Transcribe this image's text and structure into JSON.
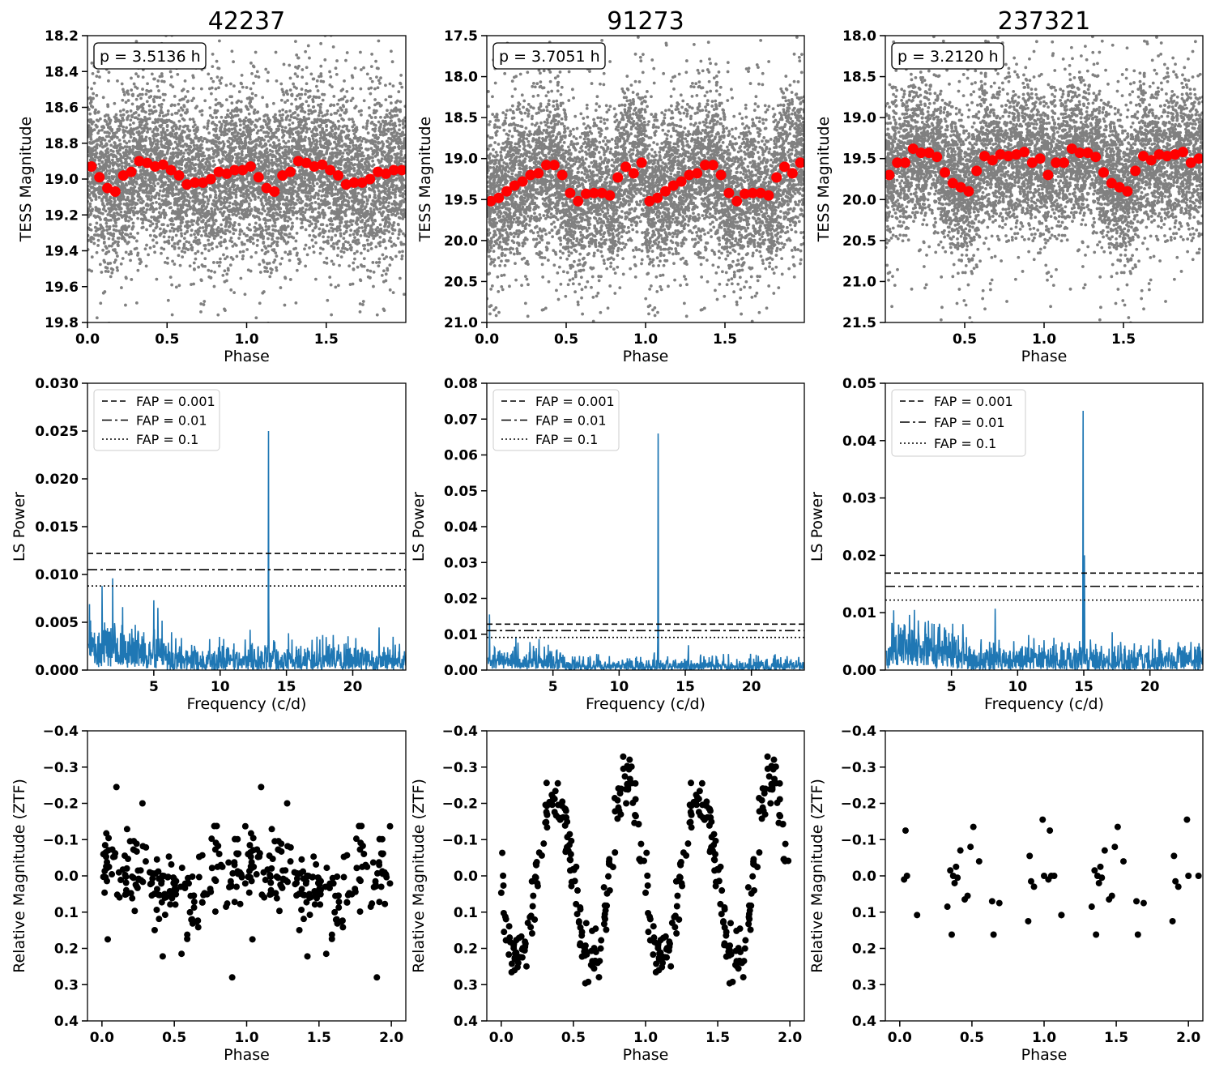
{
  "figure": {
    "columns": [
      {
        "object_id": "42237"
      },
      {
        "object_id": "91273"
      },
      {
        "object_id": "237321"
      }
    ]
  },
  "chart_data": [
    {
      "panel": "row1-col1",
      "type": "scatter",
      "title": "42237",
      "xlabel": "Phase",
      "ylabel": "TESS Magnitude",
      "xlim": [
        0.0,
        2.0
      ],
      "ylim": [
        19.8,
        18.2
      ],
      "y_inverted": true,
      "xticks": [
        "0.0",
        "0.5",
        "1.0",
        "1.5"
      ],
      "yticks": [
        "18.2",
        "18.4",
        "18.6",
        "18.8",
        "19.0",
        "19.2",
        "19.4",
        "19.6",
        "19.8"
      ],
      "annotation": "p = 3.5136 h",
      "raw_points": {
        "color": "#808080",
        "count_approx": 7000,
        "center_mag": 18.96,
        "scatter_sigma": 0.22,
        "note": "dense cloud of individual TESS measurements"
      },
      "binned_color": "#ff0000",
      "binned_x": [
        0.025,
        0.075,
        0.125,
        0.175,
        0.225,
        0.275,
        0.325,
        0.375,
        0.425,
        0.475,
        0.525,
        0.575,
        0.625,
        0.675,
        0.725,
        0.775,
        0.825,
        0.875,
        0.925,
        0.975
      ],
      "binned_y": [
        18.93,
        18.99,
        19.05,
        19.07,
        18.98,
        18.96,
        18.9,
        18.91,
        18.93,
        18.92,
        18.95,
        18.98,
        19.03,
        19.02,
        19.02,
        19.0,
        18.96,
        18.97,
        18.95,
        18.95
      ],
      "binned_repeat": "values repeat for phase 1.0-2.0"
    },
    {
      "panel": "row1-col2",
      "type": "scatter",
      "title": "91273",
      "xlabel": "Phase",
      "ylabel": "TESS Magnitude",
      "xlim": [
        0.0,
        2.0
      ],
      "ylim": [
        21.0,
        17.5
      ],
      "y_inverted": true,
      "xticks": [
        "0.0",
        "0.5",
        "1.0",
        "1.5"
      ],
      "yticks": [
        "17.5",
        "18.0",
        "18.5",
        "19.0",
        "19.5",
        "20.0",
        "20.5",
        "21.0"
      ],
      "annotation": "p = 3.7051 h",
      "raw_points": {
        "color": "#808080",
        "count_approx": 7000,
        "center_mag": 19.25,
        "scatter_sigma": 0.45,
        "note": "dense cloud of individual TESS measurements"
      },
      "binned_color": "#ff0000",
      "binned_x": [
        0.025,
        0.075,
        0.125,
        0.175,
        0.225,
        0.275,
        0.325,
        0.375,
        0.425,
        0.475,
        0.525,
        0.575,
        0.625,
        0.675,
        0.725,
        0.775,
        0.825,
        0.875,
        0.925,
        0.975
      ],
      "binned_y": [
        19.52,
        19.48,
        19.4,
        19.33,
        19.28,
        19.2,
        19.18,
        19.08,
        19.08,
        19.2,
        19.42,
        19.52,
        19.43,
        19.42,
        19.42,
        19.45,
        19.23,
        19.1,
        19.18,
        19.05
      ],
      "binned_repeat": "values repeat for phase 1.0-2.0"
    },
    {
      "panel": "row1-col3",
      "type": "scatter",
      "title": "237321",
      "xlabel": "Phase",
      "ylabel": "TESS Magnitude",
      "xlim": [
        0.0,
        2.0
      ],
      "ylim": [
        21.5,
        18.0
      ],
      "y_inverted": true,
      "xticks": [
        "0.5",
        "1.0",
        "1.5"
      ],
      "yticks": [
        "18.0",
        "18.5",
        "19.0",
        "19.5",
        "20.0",
        "20.5",
        "21.0",
        "21.5"
      ],
      "annotation": "p = 3.2120 h",
      "raw_points": {
        "color": "#808080",
        "count_approx": 7000,
        "center_mag": 19.6,
        "scatter_sigma": 0.42,
        "note": "dense cloud of individual TESS measurements"
      },
      "binned_color": "#ff0000",
      "binned_x": [
        0.025,
        0.075,
        0.125,
        0.175,
        0.225,
        0.275,
        0.325,
        0.375,
        0.425,
        0.475,
        0.525,
        0.575,
        0.625,
        0.675,
        0.725,
        0.775,
        0.825,
        0.875,
        0.925,
        0.975
      ],
      "binned_y": [
        19.7,
        19.55,
        19.55,
        19.38,
        19.43,
        19.43,
        19.48,
        19.67,
        19.8,
        19.85,
        19.9,
        19.65,
        19.47,
        19.52,
        19.45,
        19.47,
        19.45,
        19.42,
        19.55,
        19.5
      ],
      "binned_repeat": "values repeat for phase 1.0-2.0"
    },
    {
      "panel": "row2-col1",
      "type": "line",
      "xlabel": "Frequency (c/d)",
      "ylabel": "LS Power",
      "xlim": [
        0.0,
        24.0
      ],
      "ylim": [
        0.0,
        0.03
      ],
      "xticks": [
        "5",
        "10",
        "15",
        "20"
      ],
      "yticks": [
        "0.000",
        "0.005",
        "0.010",
        "0.015",
        "0.020",
        "0.025",
        "0.030"
      ],
      "line_color": "#1f77b4",
      "peaks": [
        {
          "x": 0.15,
          "y": 0.0069
        },
        {
          "x": 1.1,
          "y": 0.0088
        },
        {
          "x": 1.9,
          "y": 0.0096
        },
        {
          "x": 5.0,
          "y": 0.0073
        },
        {
          "x": 13.65,
          "y": 0.025
        },
        {
          "x": 17.3,
          "y": 0.0035
        }
      ],
      "noise_level": 0.0015,
      "fap_lines": [
        {
          "label": "FAP = 0.001",
          "y": 0.0122,
          "style": "dashed"
        },
        {
          "label": "FAP = 0.01",
          "y": 0.0105,
          "style": "dashdot"
        },
        {
          "label": "FAP = 0.1",
          "y": 0.0088,
          "style": "dotted"
        }
      ],
      "legend_position": "upper-left"
    },
    {
      "panel": "row2-col2",
      "type": "line",
      "xlabel": "Frequency (c/d)",
      "ylabel": "LS Power",
      "xlim": [
        0.0,
        24.0
      ],
      "ylim": [
        0.0,
        0.08
      ],
      "xticks": [
        "5",
        "10",
        "15",
        "20"
      ],
      "yticks": [
        "0.00",
        "0.01",
        "0.02",
        "0.03",
        "0.04",
        "0.05",
        "0.06",
        "0.07",
        "0.08"
      ],
      "line_color": "#1f77b4",
      "peaks": [
        {
          "x": 0.2,
          "y": 0.0155
        },
        {
          "x": 2.2,
          "y": 0.009
        },
        {
          "x": 12.95,
          "y": 0.066
        }
      ],
      "noise_level": 0.0018,
      "fap_lines": [
        {
          "label": "FAP = 0.001",
          "y": 0.0128,
          "style": "dashed"
        },
        {
          "label": "FAP = 0.01",
          "y": 0.011,
          "style": "dashdot"
        },
        {
          "label": "FAP = 0.1",
          "y": 0.0091,
          "style": "dotted"
        }
      ],
      "legend_position": "upper-left"
    },
    {
      "panel": "row2-col3",
      "type": "line",
      "xlabel": "Frequency (c/d)",
      "ylabel": "LS Power",
      "xlim": [
        0.0,
        24.0
      ],
      "ylim": [
        0.0,
        0.05
      ],
      "xticks": [
        "5",
        "10",
        "15",
        "20"
      ],
      "yticks": [
        "0.00",
        "0.01",
        "0.02",
        "0.03",
        "0.04",
        "0.05"
      ],
      "line_color": "#1f77b4",
      "peaks": [
        {
          "x": 0.5,
          "y": 0.0082
        },
        {
          "x": 2.2,
          "y": 0.0105
        },
        {
          "x": 8.3,
          "y": 0.0107
        },
        {
          "x": 14.95,
          "y": 0.0452
        },
        {
          "x": 15.05,
          "y": 0.02
        }
      ],
      "noise_level": 0.0025,
      "fap_lines": [
        {
          "label": "FAP = 0.001",
          "y": 0.0169,
          "style": "dashed"
        },
        {
          "label": "FAP = 0.01",
          "y": 0.0146,
          "style": "dashdot"
        },
        {
          "label": "FAP = 0.1",
          "y": 0.0122,
          "style": "dotted"
        }
      ],
      "legend_position": "upper-left"
    },
    {
      "panel": "row3-col1",
      "type": "scatter",
      "xlabel": "Phase",
      "ylabel": "Relative Magnitude (ZTF)",
      "xlim": [
        -0.1,
        2.1
      ],
      "ylim": [
        0.4,
        -0.4
      ],
      "y_inverted": true,
      "xticks": [
        "0.0",
        "0.5",
        "1.0",
        "1.5",
        "2.0"
      ],
      "yticks": [
        "−0.4",
        "−0.3",
        "−0.2",
        "−0.1",
        "0.0",
        "0.1",
        "0.2",
        "0.3",
        "0.4"
      ],
      "point_color": "#000000",
      "points_over_one_cycle": 175,
      "shape_description": "scattered points near 0.0 with shallow sinusoidal modulation (amplitude ~0.05 mag), a few outliers to −0.25 and 0.28",
      "amplitude": 0.05,
      "scatter_sigma": 0.055,
      "outliers": [
        [
          0.1,
          -0.245
        ],
        [
          0.28,
          -0.2
        ],
        [
          0.42,
          0.222
        ],
        [
          0.9,
          0.28
        ],
        [
          0.04,
          0.175
        ],
        [
          0.55,
          0.215
        ]
      ],
      "repeat": "points repeat for phase 1.0-2.0"
    },
    {
      "panel": "row3-col2",
      "type": "scatter",
      "xlabel": "Phase",
      "ylabel": "Relative Magnitude (ZTF)",
      "xlim": [
        -0.1,
        2.1
      ],
      "ylim": [
        0.4,
        -0.4
      ],
      "y_inverted": true,
      "xticks": [
        "0.0",
        "0.5",
        "1.0",
        "1.5",
        "2.0"
      ],
      "yticks": [
        "−0.4",
        "−0.3",
        "−0.2",
        "−0.1",
        "0.0",
        "0.1",
        "0.2",
        "0.3",
        "0.4"
      ],
      "point_color": "#000000",
      "points_over_one_cycle": 200,
      "shape_description": "double-wave light curve, maxima near phase 0.37 and 0.85 (about −0.25), minima near phase 0.1 and 0.6 (about 0.27)",
      "amplitude": 0.25,
      "scatter_sigma": 0.04,
      "repeat": "points repeat for phase 1.0-2.0"
    },
    {
      "panel": "row3-col3",
      "type": "scatter",
      "xlabel": "Phase",
      "ylabel": "Relative Magnitude (ZTF)",
      "xlim": [
        -0.1,
        2.1
      ],
      "ylim": [
        0.4,
        -0.4
      ],
      "y_inverted": true,
      "xticks": [
        "0.0",
        "0.5",
        "1.0",
        "1.5",
        "2.0"
      ],
      "yticks": [
        "−0.4",
        "−0.3",
        "−0.2",
        "−0.1",
        "0.0",
        "0.1",
        "0.2",
        "0.3",
        "0.4"
      ],
      "point_color": "#000000",
      "x": [
        0.03,
        0.04,
        0.05,
        0.12,
        0.33,
        0.35,
        0.36,
        0.37,
        0.38,
        0.39,
        0.4,
        0.42,
        0.45,
        0.47,
        0.49,
        0.51,
        0.55,
        0.64,
        0.65,
        0.69,
        0.89,
        0.9,
        0.91,
        0.93,
        0.99,
        1.0,
        1.07,
        1.12
      ],
      "y": [
        0.01,
        -0.125,
        0.0,
        0.108,
        0.085,
        -0.015,
        0.162,
        0.0,
        0.02,
        -0.025,
        0.005,
        -0.07,
        0.065,
        0.055,
        -0.08,
        -0.135,
        -0.04,
        0.07,
        0.162,
        0.075,
        0.125,
        -0.055,
        0.015,
        0.03,
        -0.155,
        0.0,
        0.0,
        0.108
      ],
      "repeat": "points repeat for phase 1.0-2.0"
    }
  ]
}
